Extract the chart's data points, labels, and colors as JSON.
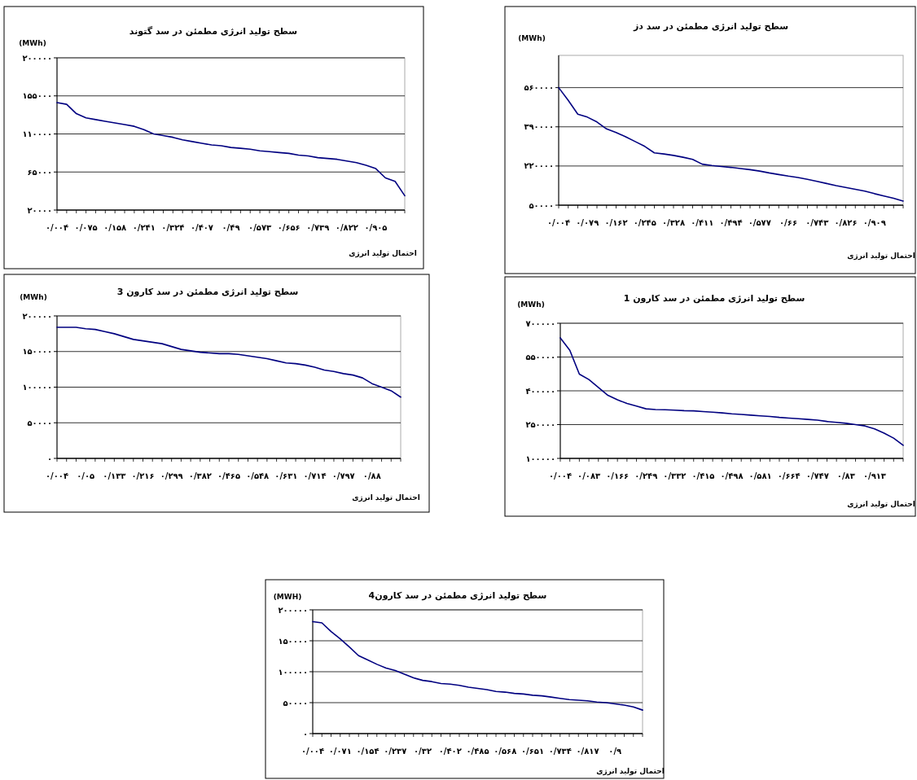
{
  "chart_data": [
    {
      "type": "line",
      "title": "سطح تولید انرژی مطمئن در سد گتوند",
      "ylabel": "(MWh)",
      "xlabel": "احتمال تولید انرژی",
      "color": "#000080",
      "grid": "y",
      "categories": [
        "۰/۰۰۴",
        null,
        null,
        "۰/۰۷۵",
        null,
        null,
        "۰/۱۵۸",
        null,
        null,
        "۰/۲۴۱",
        null,
        null,
        "۰/۳۲۴",
        null,
        null,
        "۰/۴۰۷",
        null,
        null,
        "۰/۴۹",
        null,
        null,
        "۰/۵۷۳",
        null,
        null,
        "۰/۶۵۶",
        null,
        null,
        "۰/۷۳۹",
        null,
        null,
        "۰/۸۲۲",
        null,
        null,
        "۰/۹۰۵",
        null,
        null,
        null
      ],
      "values": [
        147000,
        145000,
        134000,
        129000,
        127000,
        125000,
        123000,
        121000,
        119000,
        115000,
        110000,
        108000,
        106000,
        103000,
        101000,
        99000,
        97000,
        96000,
        94000,
        93000,
        92000,
        90000,
        89000,
        88000,
        87000,
        85000,
        84000,
        82000,
        81000,
        80000,
        78000,
        76000,
        73000,
        69000,
        58000,
        54000,
        37000
      ],
      "ylim": [
        20000,
        200000
      ],
      "yticks": [
        {
          "value": 20000,
          "label": "۲۰۰۰۰"
        },
        {
          "value": 65000,
          "label": "۶۵۰۰۰"
        },
        {
          "value": 110000,
          "label": "۱۱۰۰۰۰"
        },
        {
          "value": 155000,
          "label": "۱۵۵۰۰۰"
        },
        {
          "value": 200000,
          "label": "۲۰۰۰۰۰"
        }
      ]
    },
    {
      "type": "line",
      "title": "سطح تولید انرژی مطمئن در سد دز",
      "ylabel": "(MWh)",
      "xlabel": "احتمال تولید انرژی",
      "color": "#000080",
      "grid": "y",
      "categories": [
        "۰/۰۰۴",
        null,
        null,
        "۰/۰۷۹",
        null,
        null,
        "۰/۱۶۲",
        null,
        null,
        "۰/۲۴۵",
        null,
        null,
        "۰/۳۲۸",
        null,
        null,
        "۰/۴۱۱",
        null,
        null,
        "۰/۴۹۴",
        null,
        null,
        "۰/۵۷۷",
        null,
        null,
        "۰/۶۶",
        null,
        null,
        "۰/۷۴۳",
        null,
        null,
        "۰/۸۲۶",
        null,
        null,
        "۰/۹۰۹",
        null,
        null,
        null
      ],
      "values": [
        560000,
        505000,
        445000,
        432000,
        411000,
        381000,
        365000,
        347000,
        326000,
        305000,
        277000,
        272000,
        266000,
        258000,
        249000,
        228000,
        222000,
        218000,
        214000,
        209000,
        204000,
        198000,
        190000,
        183000,
        176000,
        170000,
        162000,
        153000,
        144000,
        135000,
        127000,
        119000,
        111000,
        100000,
        90000,
        80000,
        68000
      ],
      "ylim": [
        50000,
        700000
      ],
      "yticks": [
        {
          "value": 50000,
          "label": "۵۰۰۰۰"
        },
        {
          "value": 220000,
          "label": "۲۲۰۰۰۰"
        },
        {
          "value": 390000,
          "label": "۳۹۰۰۰۰"
        },
        {
          "value": 560000,
          "label": "۵۶۰۰۰۰"
        }
      ]
    },
    {
      "type": "line",
      "title": "سطح تولید انرژی مطمئن در سد کارون 3",
      "ylabel": "(MWh)",
      "xlabel": "احتمال تولید انرژی",
      "color": "#000080",
      "grid": "y",
      "categories": [
        "۰/۰۰۴",
        null,
        null,
        "۰/۰۵",
        null,
        null,
        "۰/۱۳۳",
        null,
        null,
        "۰/۲۱۶",
        null,
        null,
        "۰/۲۹۹",
        null,
        null,
        "۰/۳۸۲",
        null,
        null,
        "۰/۴۶۵",
        null,
        null,
        "۰/۵۴۸",
        null,
        null,
        "۰/۶۳۱",
        null,
        null,
        "۰/۷۱۴",
        null,
        null,
        "۰/۷۹۷",
        null,
        null,
        "۰/۸۸",
        null,
        null,
        null
      ],
      "values": [
        184000,
        184000,
        184000,
        182000,
        181000,
        178000,
        175000,
        171000,
        167000,
        165000,
        163000,
        161000,
        157000,
        153000,
        151000,
        149000,
        148000,
        147000,
        147000,
        146000,
        144000,
        142000,
        140000,
        137000,
        134000,
        133000,
        131000,
        128000,
        124000,
        122000,
        119000,
        117000,
        113000,
        105000,
        100000,
        95000,
        86000
      ],
      "ylim": [
        0,
        200000
      ],
      "yticks": [
        {
          "value": 0,
          "label": "۰"
        },
        {
          "value": 50000,
          "label": "۵۰۰۰۰"
        },
        {
          "value": 100000,
          "label": "۱۰۰۰۰۰"
        },
        {
          "value": 150000,
          "label": "۱۵۰۰۰۰"
        },
        {
          "value": 200000,
          "label": "۲۰۰۰۰۰"
        }
      ]
    },
    {
      "type": "line",
      "title": "سطح تولید انرژی مطمئن در سد کارون 1",
      "ylabel": "(MWh)",
      "xlabel": "احتمال تولید انرژی",
      "color": "#000080",
      "grid": "y",
      "categories": [
        "۰/۰۰۴",
        null,
        null,
        "۰/۰۸۳",
        null,
        null,
        "۰/۱۶۶",
        null,
        null,
        "۰/۲۴۹",
        null,
        null,
        "۰/۳۳۲",
        null,
        null,
        "۰/۴۱۵",
        null,
        null,
        "۰/۴۹۸",
        null,
        null,
        "۰/۵۸۱",
        null,
        null,
        "۰/۶۶۴",
        null,
        null,
        "۰/۷۴۷",
        null,
        null,
        "۰/۸۳",
        null,
        null,
        "۰/۹۱۳",
        null,
        null,
        null
      ],
      "values": [
        635000,
        580000,
        474000,
        450000,
        415000,
        380000,
        360000,
        344000,
        332000,
        320000,
        317000,
        316000,
        314000,
        312000,
        311000,
        308000,
        305000,
        302000,
        298000,
        295000,
        292000,
        289000,
        286000,
        282000,
        279000,
        276000,
        273000,
        270000,
        264000,
        260000,
        256000,
        250000,
        244000,
        231000,
        212000,
        190000,
        158000
      ],
      "ylim": [
        100000,
        700000
      ],
      "yticks": [
        {
          "value": 100000,
          "label": "۱۰۰۰۰۰"
        },
        {
          "value": 250000,
          "label": "۲۵۰۰۰۰"
        },
        {
          "value": 400000,
          "label": "۴۰۰۰۰۰"
        },
        {
          "value": 550000,
          "label": "۵۵۰۰۰۰"
        },
        {
          "value": 700000,
          "label": "۷۰۰۰۰۰"
        }
      ]
    },
    {
      "type": "line",
      "title": "سطح تولید انرژی مطمئن در سد کارون4",
      "ylabel": "(MWH)",
      "xlabel": "احتمال تولید انرژی",
      "color": "#000080",
      "grid": "y",
      "categories": [
        "۰/۰۰۴",
        null,
        null,
        "۰/۰۷۱",
        null,
        null,
        "۰/۱۵۴",
        null,
        null,
        "۰/۲۳۷",
        null,
        null,
        "۰/۳۲",
        null,
        null,
        "۰/۴۰۲",
        null,
        null,
        "۰/۴۸۵",
        null,
        null,
        "۰/۵۶۸",
        null,
        null,
        "۰/۶۵۱",
        null,
        null,
        "۰/۷۳۴",
        null,
        null,
        "۰/۸۱۷",
        null,
        null,
        "۰/۹",
        null,
        null,
        null
      ],
      "values": [
        181000,
        179000,
        165000,
        153000,
        140000,
        126000,
        119000,
        112000,
        106000,
        102000,
        96000,
        90000,
        86000,
        84000,
        81000,
        80000,
        78000,
        75000,
        73000,
        71000,
        68000,
        67000,
        65000,
        64000,
        62000,
        61000,
        59000,
        57000,
        55000,
        54000,
        53000,
        51000,
        50000,
        48000,
        46000,
        43000,
        38000
      ],
      "ylim": [
        0,
        200000
      ],
      "yticks": [
        {
          "value": 0,
          "label": "۰"
        },
        {
          "value": 50000,
          "label": "۵۰۰۰۰"
        },
        {
          "value": 100000,
          "label": "۱۰۰۰۰۰"
        },
        {
          "value": 150000,
          "label": "۱۵۰۰۰۰"
        },
        {
          "value": 200000,
          "label": "۲۰۰۰۰۰"
        }
      ]
    }
  ]
}
